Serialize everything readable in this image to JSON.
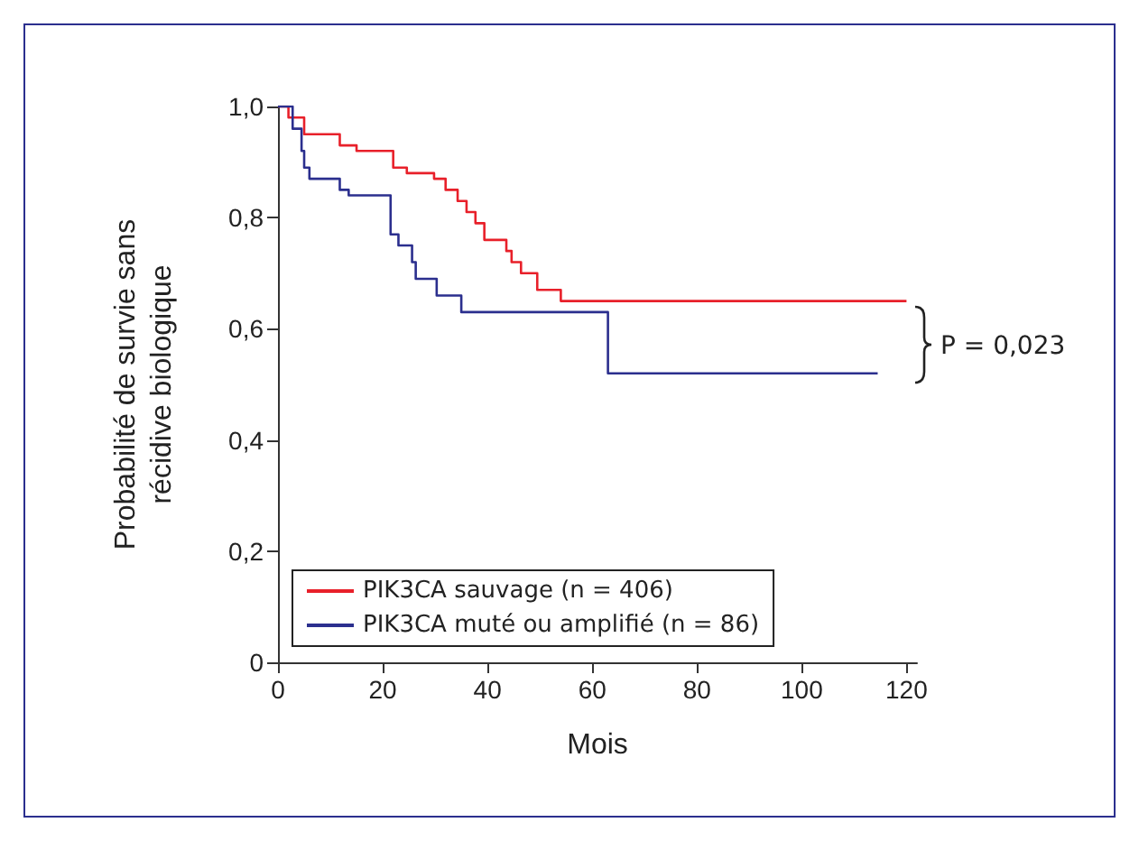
{
  "chart_data": {
    "type": "step",
    "xlabel": "Mois",
    "ylabel": "Probabilité de survie sans\nrécidive biologique",
    "xlim": [
      0,
      122
    ],
    "xticks": [
      0,
      20,
      40,
      60,
      80,
      100,
      120
    ],
    "ylim": [
      0,
      1.0
    ],
    "yticks": [
      0,
      {
        "value": 0.2,
        "label": "0,2"
      },
      {
        "value": 0.4,
        "label": "0,4"
      },
      {
        "value": 0.6,
        "label": "0,6"
      },
      {
        "value": 0.8,
        "label": "0,8"
      },
      {
        "value": 1.0,
        "label": "1,0"
      }
    ],
    "series": [
      {
        "name": "PIK3CA sauvage (n = 406)",
        "color": "#e8202a",
        "x": [
          0,
          2,
          5,
          11.8,
          15,
          22,
          24.6,
          29.8,
          32,
          34.3,
          36,
          37.7,
          39.4,
          43.6,
          44.6,
          46.4,
          49.5,
          54,
          120
        ],
        "values": [
          1.0,
          0.98,
          0.95,
          0.93,
          0.92,
          0.89,
          0.88,
          0.87,
          0.85,
          0.83,
          0.81,
          0.79,
          0.76,
          0.74,
          0.72,
          0.7,
          0.67,
          0.65,
          0.65
        ]
      },
      {
        "name": "PIK3CA muté ou amplifié (n = 86)",
        "color": "#2b2f8e",
        "x": [
          0,
          2.8,
          4.5,
          5,
          6,
          11.8,
          13.5,
          21.5,
          23,
          25.6,
          26.3,
          30.3,
          35,
          63,
          114.5
        ],
        "values": [
          1.0,
          0.96,
          0.92,
          0.89,
          0.87,
          0.85,
          0.84,
          0.77,
          0.75,
          0.72,
          0.69,
          0.66,
          0.63,
          0.52,
          0.52
        ]
      }
    ],
    "annotations": [
      "P = 0,023"
    ],
    "legend": "bottom left",
    "grid": false,
    "marker": "none",
    "line_style": "solid"
  }
}
